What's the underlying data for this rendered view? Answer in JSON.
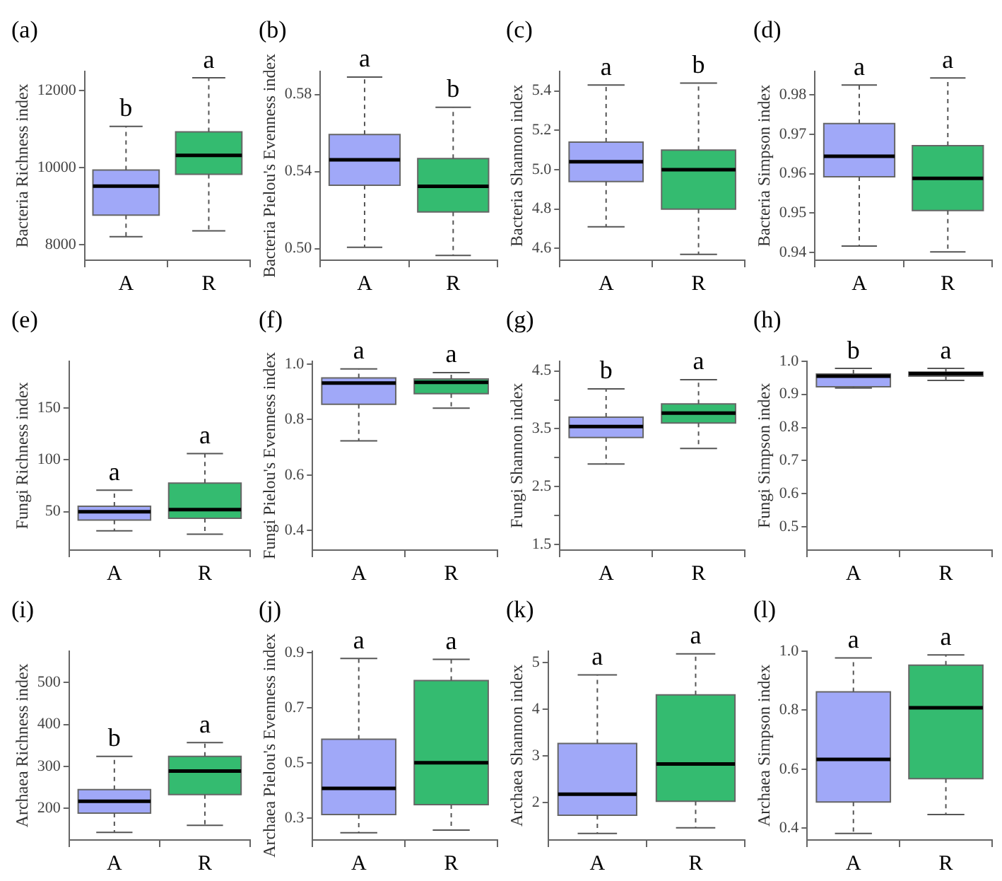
{
  "chart_data": [
    {
      "type": "box",
      "title": "(a)",
      "ylabel": "Bacteria Richness index",
      "categories": [
        "A",
        "R"
      ],
      "colors": [
        "#a0a8f8",
        "#34bb70"
      ],
      "boxes": [
        {
          "low": 8210,
          "q1": 8770,
          "median": 9520,
          "q3": 9940,
          "high": 11070
        },
        {
          "low": 8360,
          "q1": 9830,
          "median": 10320,
          "q3": 10930,
          "high": 12330
        }
      ],
      "ylim": [
        7600,
        12500
      ],
      "yticks": [
        8000,
        10000,
        12000
      ],
      "grid": false,
      "legend": false,
      "annotations": [
        {
          "text": "b",
          "x": "A",
          "y": 11070
        },
        {
          "text": "a",
          "x": "R",
          "y": 12330
        }
      ]
    },
    {
      "type": "box",
      "title": "(b)",
      "ylabel": "Bacteria Pielou's Evenness index",
      "categories": [
        "A",
        "R"
      ],
      "colors": [
        "#a0a8f8",
        "#34bb70"
      ],
      "boxes": [
        {
          "low": 0.5007,
          "q1": 0.5329,
          "median": 0.5461,
          "q3": 0.5592,
          "high": 0.589
        },
        {
          "low": 0.4965,
          "q1": 0.519,
          "median": 0.5323,
          "q3": 0.5467,
          "high": 0.5733
        }
      ],
      "ylim": [
        0.494,
        0.592
      ],
      "yticks": [
        {
          "value": 0.5,
          "label": "0.50"
        },
        0.54,
        0.58
      ],
      "grid": false,
      "legend": false,
      "annotations": [
        {
          "text": "a",
          "x": "A",
          "y": 0.589
        },
        {
          "text": "b",
          "x": "R",
          "y": 0.5733
        }
      ]
    },
    {
      "type": "box",
      "title": "(c)",
      "ylabel": "Bacteria Shannon index",
      "categories": [
        "A",
        "R"
      ],
      "colors": [
        "#a0a8f8",
        "#34bb70"
      ],
      "boxes": [
        {
          "low": 4.71,
          "q1": 4.94,
          "median": 5.04,
          "q3": 5.14,
          "high": 5.43
        },
        {
          "low": 4.57,
          "q1": 4.8,
          "median": 5.0,
          "q3": 5.1,
          "high": 5.44
        }
      ],
      "ylim": [
        4.54,
        5.5
      ],
      "yticks": [
        4.6,
        4.8,
        {
          "value": 5,
          "label": "5.0"
        },
        5.2,
        5.4
      ],
      "grid": false,
      "legend": false,
      "annotations": [
        {
          "text": "a",
          "x": "A",
          "y": 5.43
        },
        {
          "text": "b",
          "x": "R",
          "y": 5.44
        }
      ]
    },
    {
      "type": "box",
      "title": "(d)",
      "ylabel": "Bacteria Simpson index",
      "categories": [
        "A",
        "R"
      ],
      "colors": [
        "#a0a8f8",
        "#34bb70"
      ],
      "boxes": [
        {
          "low": 0.9416,
          "q1": 0.9592,
          "median": 0.9644,
          "q3": 0.9727,
          "high": 0.9825
        },
        {
          "low": 0.9401,
          "q1": 0.9506,
          "median": 0.9588,
          "q3": 0.9671,
          "high": 0.9843
        }
      ],
      "ylim": [
        0.938,
        0.986
      ],
      "yticks": [
        0.94,
        0.95,
        0.96,
        0.97,
        0.98
      ],
      "grid": false,
      "legend": false,
      "annotations": [
        {
          "text": "a",
          "x": "A",
          "y": 0.9825
        },
        {
          "text": "a",
          "x": "R",
          "y": 0.9843
        }
      ]
    },
    {
      "type": "box",
      "title": "(e)",
      "ylabel": "Fungi Richness index",
      "categories": [
        "A",
        "R"
      ],
      "colors": [
        "#a0a8f8",
        "#34bb70"
      ],
      "boxes": [
        {
          "low": 31.6,
          "q1": 42,
          "median": 50,
          "q3": 55.2,
          "high": 70.8
        },
        {
          "low": 28.4,
          "q1": 43.6,
          "median": 52,
          "q3": 77.6,
          "high": 106
        }
      ],
      "ylim": [
        13,
        195
      ],
      "yticks": [
        50,
        100,
        150
      ],
      "grid": false,
      "legend": false,
      "annotations": [
        {
          "text": "a",
          "x": "A",
          "y": 70.8
        },
        {
          "text": "a",
          "x": "R",
          "y": 106
        }
      ]
    },
    {
      "type": "box",
      "title": "(f)",
      "ylabel": "Fungi Pielou's Evenness index",
      "categories": [
        "A",
        "R"
      ],
      "colors": [
        "#a0a8f8",
        "#34bb70"
      ],
      "boxes": [
        {
          "low": 0.723,
          "q1": 0.855,
          "median": 0.931,
          "q3": 0.95,
          "high": 0.982
        },
        {
          "low": 0.841,
          "q1": 0.893,
          "median": 0.934,
          "q3": 0.946,
          "high": 0.969
        }
      ],
      "ylim": [
        0.33,
        1.01
      ],
      "yticks": [
        0.4,
        0.6,
        0.8,
        {
          "value": 1,
          "label": "1.0"
        }
      ],
      "grid": false,
      "legend": false,
      "annotations": [
        {
          "text": "a",
          "x": "A",
          "y": 0.982
        },
        {
          "text": "a",
          "x": "R",
          "y": 0.969
        }
      ]
    },
    {
      "type": "box",
      "title": "(g)",
      "ylabel": "Fungi Shannon index",
      "categories": [
        "A",
        "R"
      ],
      "colors": [
        "#a0a8f8",
        "#34bb70"
      ],
      "boxes": [
        {
          "low": 2.89,
          "q1": 3.35,
          "median": 3.54,
          "q3": 3.7,
          "high": 4.19
        },
        {
          "low": 3.16,
          "q1": 3.6,
          "median": 3.77,
          "q3": 3.93,
          "high": 4.35
        }
      ],
      "ylim": [
        1.4,
        4.67
      ],
      "yticks": [
        1.5,
        {
          "value": 2,
          "label": null
        },
        2.5,
        {
          "value": 3,
          "label": null
        },
        3.5,
        {
          "value": 4,
          "label": null
        },
        4.5
      ],
      "grid": false,
      "legend": false,
      "annotations": [
        {
          "text": "b",
          "x": "A",
          "y": 4.19
        },
        {
          "text": "a",
          "x": "R",
          "y": 4.35
        }
      ]
    },
    {
      "type": "box",
      "title": "(h)",
      "ylabel": "Fungi Simpson index",
      "categories": [
        "A",
        "R"
      ],
      "colors": [
        "#a0a8f8",
        "#34bb70"
      ],
      "boxes": [
        {
          "low": 0.919,
          "q1": 0.923,
          "median": 0.955,
          "q3": 0.961,
          "high": 0.978
        },
        {
          "low": 0.942,
          "q1": 0.955,
          "median": 0.962,
          "q3": 0.967,
          "high": 0.978
        }
      ],
      "ylim": [
        0.43,
        1.0
      ],
      "yticks": [
        0.5,
        0.6,
        0.7,
        0.8,
        0.9,
        {
          "value": 1,
          "label": "1.0"
        }
      ],
      "grid": false,
      "legend": false,
      "annotations": [
        {
          "text": "b",
          "x": "A",
          "y": 0.978
        },
        {
          "text": "a",
          "x": "R",
          "y": 0.978
        }
      ]
    },
    {
      "type": "box",
      "title": "(i)",
      "ylabel": "Archaea Richness index",
      "categories": [
        "A",
        "R"
      ],
      "colors": [
        "#a0a8f8",
        "#34bb70"
      ],
      "boxes": [
        {
          "low": 143,
          "q1": 189,
          "median": 217,
          "q3": 245,
          "high": 324
        },
        {
          "low": 160,
          "q1": 233,
          "median": 289,
          "q3": 324,
          "high": 357
        }
      ],
      "ylim": [
        125,
        575
      ],
      "yticks": [
        200,
        300,
        400,
        500
      ],
      "grid": false,
      "legend": false,
      "annotations": [
        {
          "text": "b",
          "x": "A",
          "y": 324
        },
        {
          "text": "a",
          "x": "R",
          "y": 357
        }
      ]
    },
    {
      "type": "box",
      "title": "(j)",
      "ylabel": "Archaea Pielou's Evenness index",
      "categories": [
        "A",
        "R"
      ],
      "colors": [
        "#a0a8f8",
        "#34bb70"
      ],
      "boxes": [
        {
          "low": 0.246,
          "q1": 0.312,
          "median": 0.407,
          "q3": 0.585,
          "high": 0.878
        },
        {
          "low": 0.256,
          "q1": 0.348,
          "median": 0.5,
          "q3": 0.798,
          "high": 0.875
        }
      ],
      "ylim": [
        0.22,
        0.905
      ],
      "yticks": [
        0.3,
        0.5,
        0.7,
        0.9
      ],
      "grid": false,
      "legend": false,
      "annotations": [
        {
          "text": "a",
          "x": "A",
          "y": 0.878
        },
        {
          "text": "a",
          "x": "R",
          "y": 0.875
        }
      ]
    },
    {
      "type": "box",
      "title": "(k)",
      "ylabel": "Archaea Shannon index",
      "categories": [
        "A",
        "R"
      ],
      "colors": [
        "#a0a8f8",
        "#34bb70"
      ],
      "boxes": [
        {
          "low": 1.34,
          "q1": 1.73,
          "median": 2.18,
          "q3": 3.27,
          "high": 4.74
        },
        {
          "low": 1.46,
          "q1": 2.03,
          "median": 2.83,
          "q3": 4.31,
          "high": 5.19
        }
      ],
      "ylim": [
        1.2,
        5.25
      ],
      "yticks": [
        2,
        3,
        4,
        5
      ],
      "grid": false,
      "legend": false,
      "annotations": [
        {
          "text": "a",
          "x": "A",
          "y": 4.74
        },
        {
          "text": "a",
          "x": "R",
          "y": 5.19
        }
      ]
    },
    {
      "type": "box",
      "title": "(l)",
      "ylabel": "Archaea Simpson index",
      "categories": [
        "A",
        "R"
      ],
      "colors": [
        "#a0a8f8",
        "#34bb70"
      ],
      "boxes": [
        {
          "low": 0.382,
          "q1": 0.489,
          "median": 0.633,
          "q3": 0.862,
          "high": 0.977
        },
        {
          "low": 0.446,
          "q1": 0.568,
          "median": 0.808,
          "q3": 0.952,
          "high": 0.987
        }
      ],
      "ylim": [
        0.36,
        1.0
      ],
      "yticks": [
        0.4,
        0.6,
        0.8,
        {
          "value": 1,
          "label": "1.0"
        }
      ],
      "grid": false,
      "legend": false,
      "annotations": [
        {
          "text": "a",
          "x": "A",
          "y": 0.977
        },
        {
          "text": "a",
          "x": "R",
          "y": 0.987
        }
      ]
    }
  ]
}
